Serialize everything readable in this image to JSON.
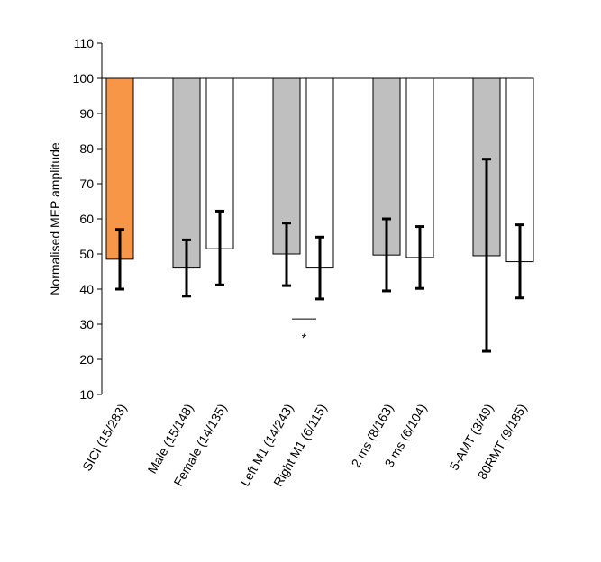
{
  "chart_data": {
    "type": "bar",
    "title": "",
    "xlabel": "",
    "ylabel": "Normalised MEP amplitude",
    "ylim": [
      10,
      110
    ],
    "yticks": [
      10,
      20,
      30,
      40,
      50,
      60,
      70,
      80,
      90,
      100,
      110
    ],
    "grid": false,
    "legend": "none",
    "baseline": 100,
    "categories": [
      "SICI (15/283)",
      "Male (15/148)",
      "Female (14/135)",
      "Left M1 (14/243)",
      "Right M1 (6/115)",
      "2 ms (8/163)",
      "3 ms (6/104)",
      "5-AMT (3/49)",
      "80RMT (9/185)"
    ],
    "groups": [
      0,
      1,
      1,
      2,
      2,
      3,
      3,
      4,
      4
    ],
    "values": [
      48.5,
      46,
      51.5,
      50,
      46,
      49.7,
      49,
      49.5,
      47.8
    ],
    "error_low": [
      40,
      38,
      41.2,
      41,
      37.2,
      39.5,
      40.2,
      22.3,
      37.5
    ],
    "error_high": [
      57,
      54,
      62.2,
      58.8,
      54.8,
      60,
      57.8,
      77,
      58.3
    ],
    "bar_colors": [
      "#F79646",
      "#BFBFBF",
      "#FFFFFF",
      "#BFBFBF",
      "#FFFFFF",
      "#BFBFBF",
      "#FFFFFF",
      "#BFBFBF",
      "#FFFFFF"
    ],
    "annotation": {
      "text": "*",
      "between": [
        3,
        4
      ],
      "y": 31.5
    }
  }
}
